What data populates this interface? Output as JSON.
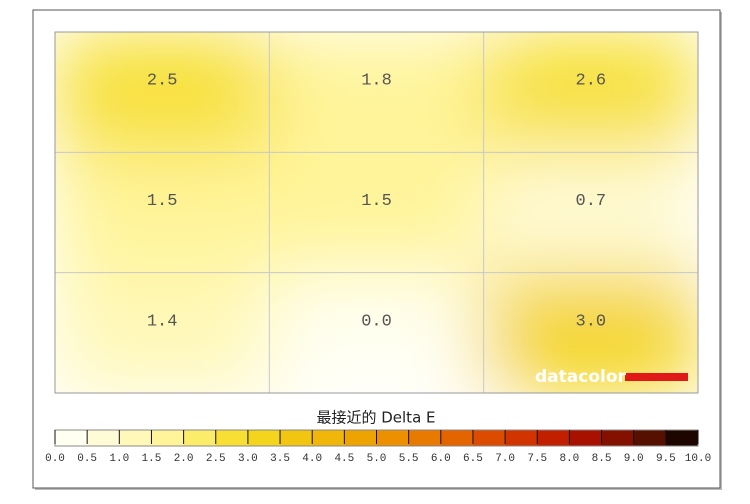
{
  "chart_data": {
    "type": "heatmap",
    "title": "最接近的 Delta E",
    "values": [
      [
        2.5,
        1.8,
        2.6
      ],
      [
        1.5,
        1.5,
        0.7
      ],
      [
        1.4,
        0.0,
        3.0
      ]
    ],
    "value_labels": [
      [
        "2.5",
        "1.8",
        "2.6"
      ],
      [
        "1.5",
        "1.5",
        "0.7"
      ],
      [
        "1.4",
        "0.0",
        "3.0"
      ]
    ],
    "zlim": [
      0,
      10
    ],
    "zticks": [
      {
        "value": 0,
        "label": "0.0"
      },
      0.5,
      {
        "value": 1,
        "label": "1.0"
      },
      1.5,
      {
        "value": 2,
        "label": "2.0"
      },
      2.5,
      {
        "value": 3,
        "label": "3.0"
      },
      3.5,
      {
        "value": 4,
        "label": "4.0"
      },
      4.5,
      {
        "value": 5,
        "label": "5.0"
      },
      5.5,
      {
        "value": 6,
        "label": "6.0"
      },
      6.5,
      {
        "value": 7,
        "label": "7.0"
      },
      7.5,
      {
        "value": 8,
        "label": "8.0"
      },
      8.5,
      {
        "value": 9,
        "label": "9.0"
      },
      9.5,
      {
        "value": 10,
        "label": "10.0"
      }
    ],
    "colors": [
      "#fffff2",
      "#fffbd6",
      "#fff8b8",
      "#fff49a",
      "#fbec6a",
      "#f7e033",
      "#f4d41c",
      "#f2c610",
      "#f0b60a",
      "#eea400",
      "#ec9000",
      "#e87a00",
      "#e46400",
      "#dc4c00",
      "#d23400",
      "#c21e00",
      "#a81000",
      "#841000",
      "#561000",
      "#1e0600"
    ],
    "grid": true,
    "logo": "datacolor"
  }
}
